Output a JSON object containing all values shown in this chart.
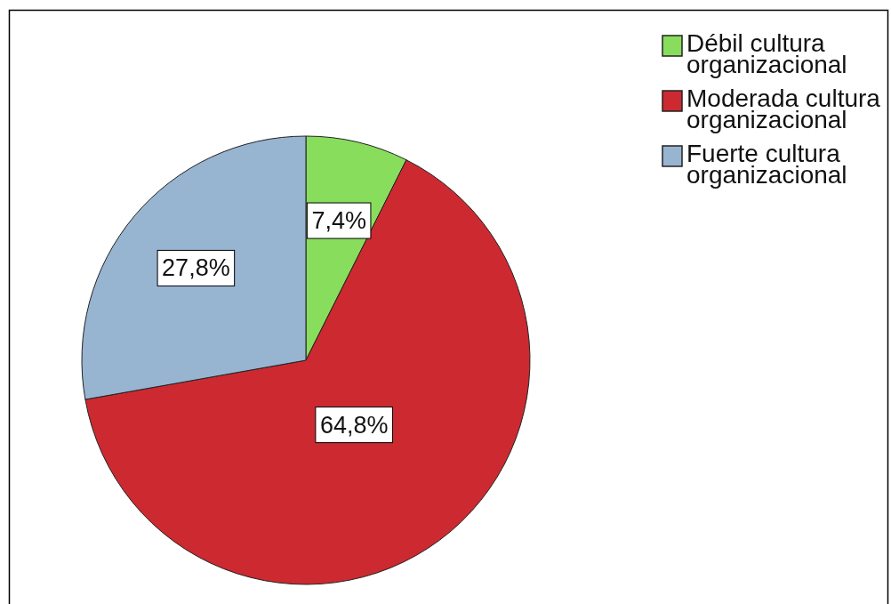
{
  "chart_data": {
    "type": "pie",
    "categories": [
      "Débil cultura organizacional",
      "Moderada cultura organizacional",
      "Fuerte cultura organizacional"
    ],
    "values": [
      7.4,
      64.8,
      27.8
    ],
    "colors": [
      "#88dd5c",
      "#cc2a30",
      "#97b4d1"
    ],
    "value_labels": [
      "7,4%",
      "64,8%",
      "27,8%"
    ],
    "legend": "top right"
  }
}
